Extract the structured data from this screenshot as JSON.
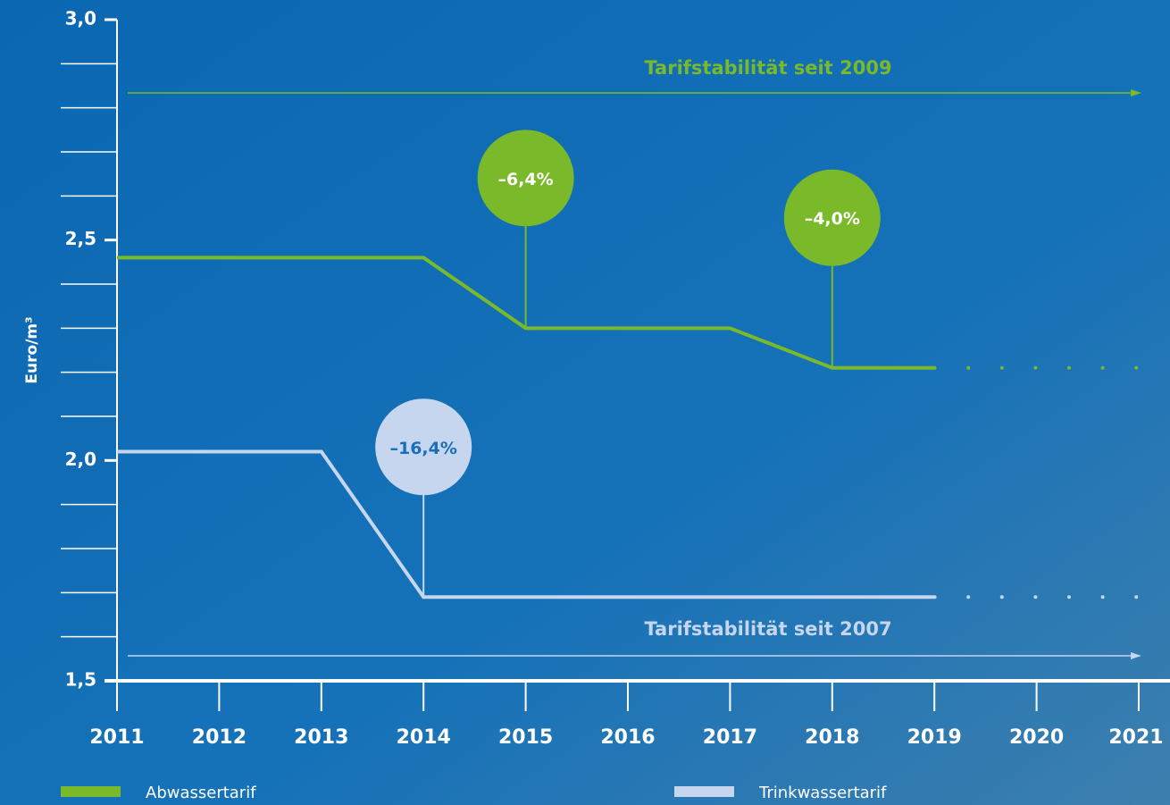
{
  "chart_data": {
    "type": "line",
    "y_label": "Euro/m³",
    "x": [
      2011,
      2012,
      2013,
      2014,
      2015,
      2016,
      2017,
      2018,
      2019,
      2020,
      2021
    ],
    "xlim": [
      2011,
      2021
    ],
    "xticks": [
      2011,
      2012,
      2013,
      2014,
      2015,
      2016,
      2017,
      2018,
      2019,
      2020,
      2021
    ],
    "ylim": [
      1.5,
      3.0
    ],
    "yticks": [
      {
        "value": 1.5,
        "label": "1,5"
      },
      {
        "value": 2.0,
        "label": "2,0"
      },
      {
        "value": 2.5,
        "label": "2,5"
      },
      {
        "value": 3.0,
        "label": "3,0"
      }
    ],
    "yminorticks": [
      1.6,
      1.7,
      1.8,
      1.9,
      2.1,
      2.2,
      2.3,
      2.4,
      2.6,
      2.7,
      2.8,
      2.9
    ],
    "dotted_from": 2019,
    "series": [
      {
        "name": "Abwassertarif",
        "color": "#7ab929",
        "values": [
          2.46,
          2.46,
          2.46,
          2.46,
          2.3,
          2.3,
          2.3,
          2.21,
          2.21,
          2.21,
          2.21
        ],
        "stability_label": "Tarifstabilität seit 2009"
      },
      {
        "name": "Trinkwassertarif",
        "color": "#c6d6ef",
        "values": [
          2.02,
          2.02,
          2.02,
          1.69,
          1.69,
          1.69,
          1.69,
          1.69,
          1.69,
          1.69,
          1.69
        ],
        "stability_label": "Tarifstabilität seit 2007"
      }
    ],
    "annotations": [
      {
        "text": "–6,4%",
        "x": 2015,
        "series": 0
      },
      {
        "text": "–4,0%",
        "x": 2018,
        "series": 0
      },
      {
        "text": "–16,4%",
        "x": 2014,
        "series": 1
      }
    ]
  }
}
